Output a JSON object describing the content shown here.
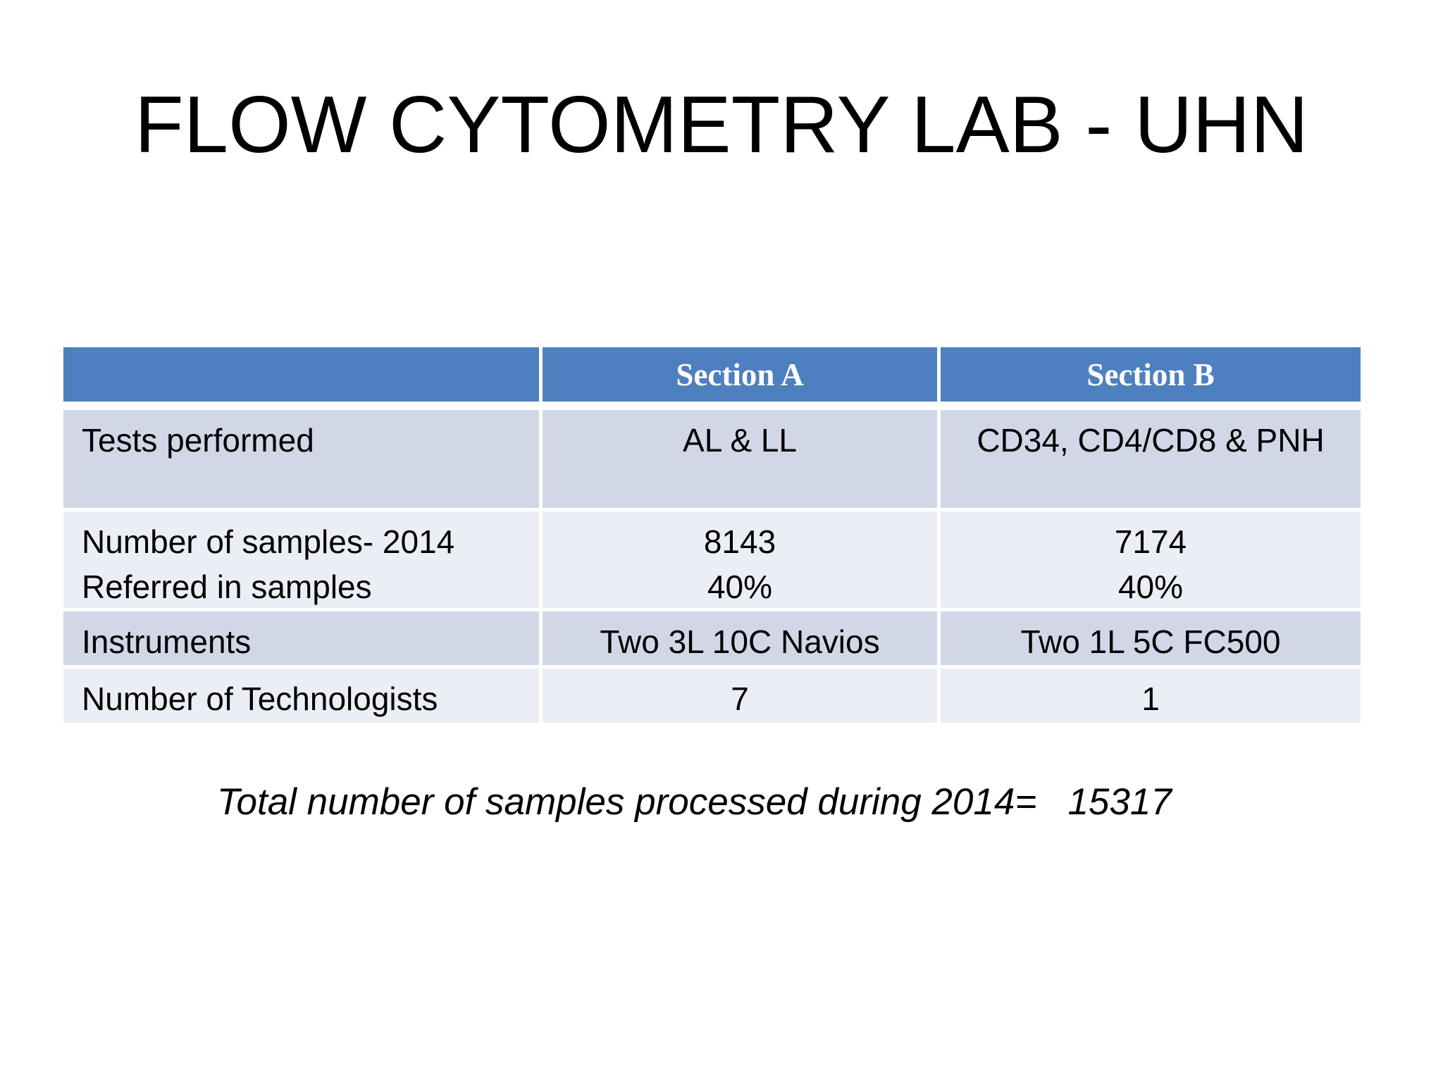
{
  "slide": {
    "title": "FLOW CYTOMETRY LAB - UHN",
    "footer": "Total number of samples processed during 2014=   15317",
    "total_samples_2014": "15317"
  },
  "table": {
    "header": {
      "col1": "",
      "col2": "Section A",
      "col3": "Section B"
    },
    "rows": [
      {
        "label": "Tests performed",
        "a": "AL & LL",
        "b": "CD34, CD4/CD8 & PNH"
      },
      {
        "label": [
          "Number of samples- 2014",
          "Referred in samples"
        ],
        "a": [
          "8143",
          "40%"
        ],
        "b": [
          "7174",
          "40%"
        ]
      },
      {
        "label": "Instruments",
        "a": "Two 3L 10C Navios",
        "b": "Two 1L 5C FC500"
      },
      {
        "label": "Number of Technologists",
        "a": "7",
        "b": "1"
      }
    ],
    "colors": {
      "header_bg": "#4e80bf",
      "header_text": "#ffffff",
      "band_dark": "#d1d7e6",
      "band_light": "#ebeef5",
      "body_text": "#000000"
    }
  }
}
